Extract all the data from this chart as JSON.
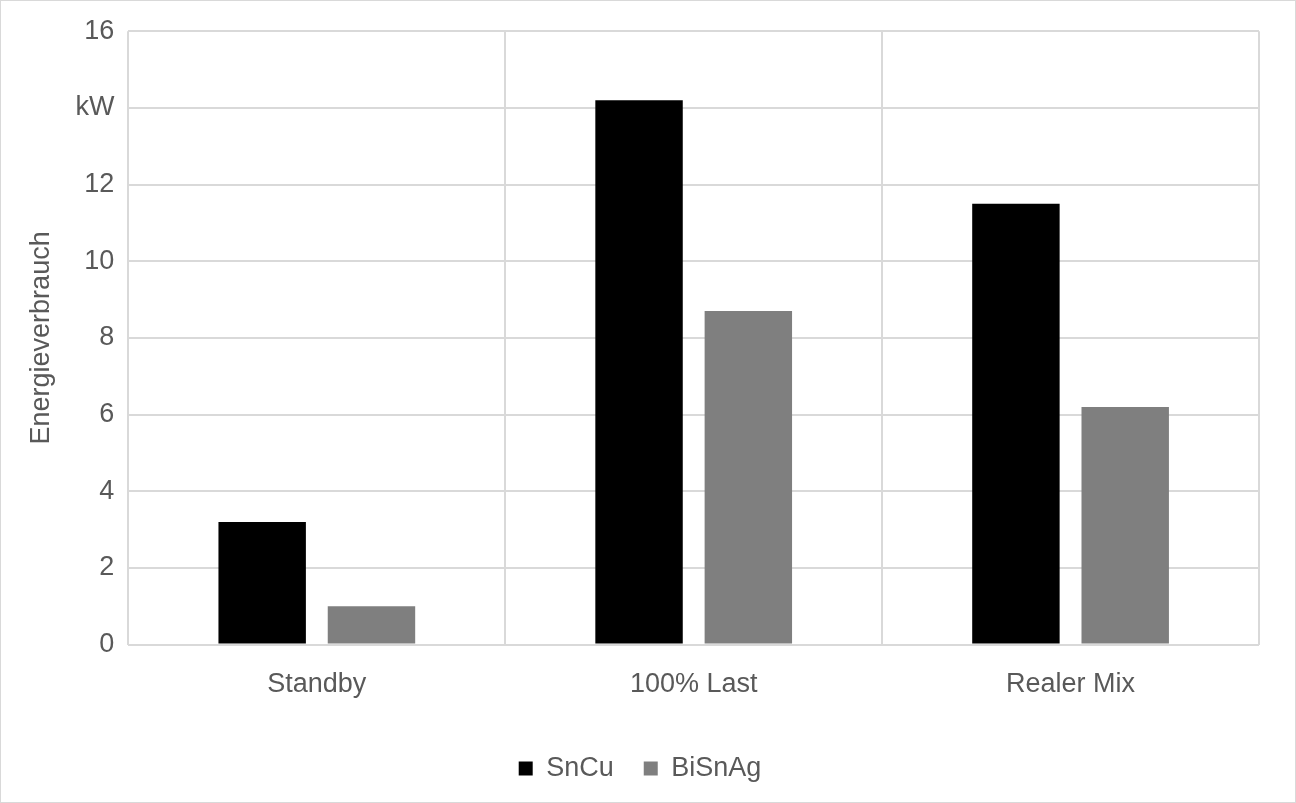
{
  "chart_data": {
    "type": "bar",
    "ylabel": "Energieverbrauch",
    "categories": [
      "Standby",
      "100% Last",
      "Realer Mix"
    ],
    "series": [
      {
        "name": "SnCu",
        "color": "#000000",
        "values": [
          3.2,
          14.2,
          11.5
        ]
      },
      {
        "name": "BiSnAg",
        "color": "#7f7f7f",
        "values": [
          1.0,
          8.7,
          6.2
        ]
      }
    ],
    "ylim": [
      0,
      16
    ],
    "yticks": [
      0,
      2,
      4,
      6,
      8,
      10,
      12,
      {
        "value": 14,
        "label": "kW"
      },
      16
    ],
    "grid": true,
    "legend": "bottom"
  }
}
